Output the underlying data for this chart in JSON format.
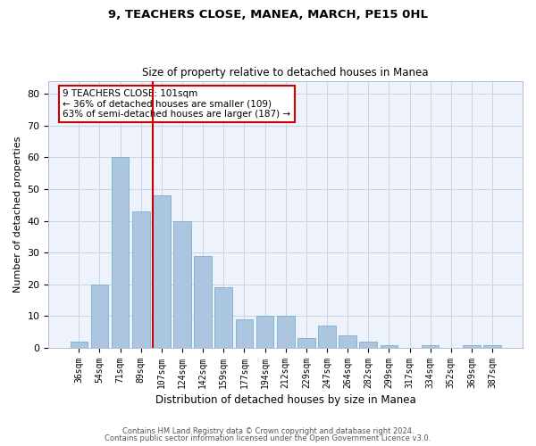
{
  "title": "9, TEACHERS CLOSE, MANEA, MARCH, PE15 0HL",
  "subtitle": "Size of property relative to detached houses in Manea",
  "xlabel": "Distribution of detached houses by size in Manea",
  "ylabel": "Number of detached properties",
  "categories": [
    "36sqm",
    "54sqm",
    "71sqm",
    "89sqm",
    "107sqm",
    "124sqm",
    "142sqm",
    "159sqm",
    "177sqm",
    "194sqm",
    "212sqm",
    "229sqm",
    "247sqm",
    "264sqm",
    "282sqm",
    "299sqm",
    "317sqm",
    "334sqm",
    "352sqm",
    "369sqm",
    "387sqm"
  ],
  "values": [
    2,
    20,
    60,
    43,
    48,
    40,
    29,
    19,
    9,
    10,
    10,
    3,
    7,
    4,
    2,
    1,
    0,
    1,
    0,
    1,
    1
  ],
  "bar_color": "#adc6e0",
  "bar_edge_color": "#7aaed0",
  "grid_color": "#c8d4e8",
  "vline_x_index": 4,
  "vline_color": "#cc0000",
  "annotation_text": "9 TEACHERS CLOSE: 101sqm\n← 36% of detached houses are smaller (109)\n63% of semi-detached houses are larger (187) →",
  "annotation_box_color": "#ffffff",
  "annotation_box_edge": "#cc0000",
  "ylim": [
    0,
    84
  ],
  "yticks": [
    0,
    10,
    20,
    30,
    40,
    50,
    60,
    70,
    80
  ],
  "footer1": "Contains HM Land Registry data © Crown copyright and database right 2024.",
  "footer2": "Contains public sector information licensed under the Open Government Licence v3.0.",
  "background_color": "#eef2fa"
}
